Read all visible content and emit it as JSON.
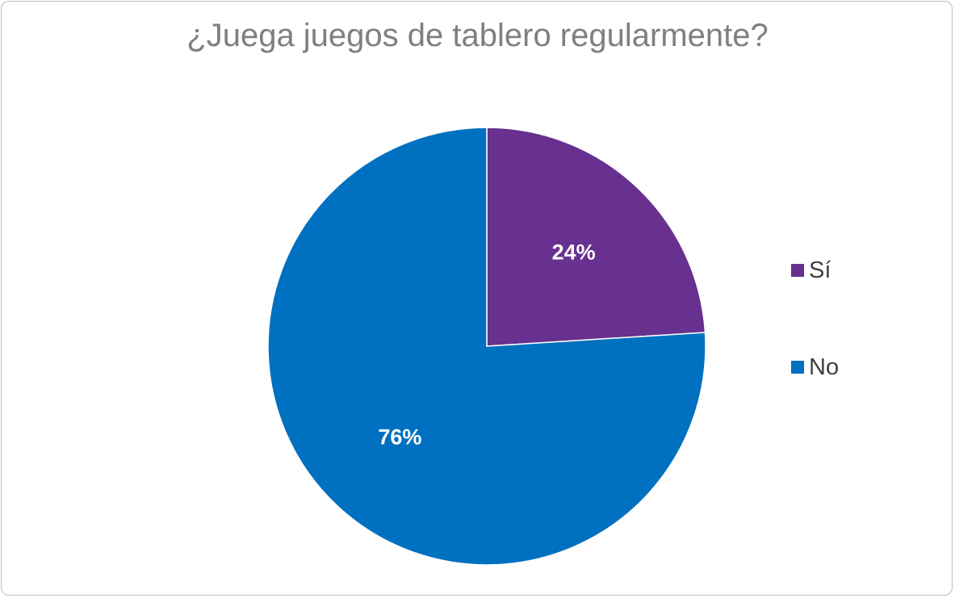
{
  "chart_data": {
    "type": "pie",
    "title": "¿Juega juegos de tablero regularmente?",
    "categories": [
      "Sí",
      "No"
    ],
    "values": [
      24,
      76
    ],
    "value_labels": [
      "24%",
      "76%"
    ],
    "colors": [
      "#68308f",
      "#0070c0"
    ],
    "legend_position": "right"
  }
}
